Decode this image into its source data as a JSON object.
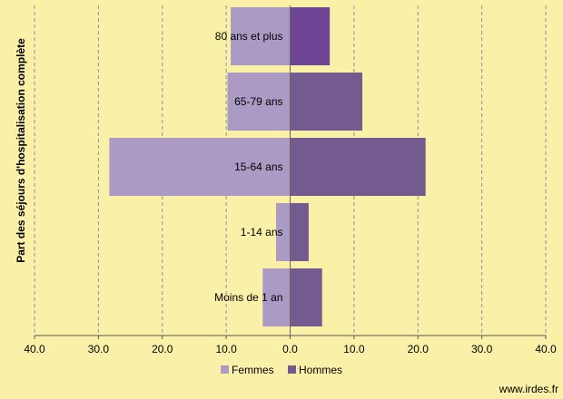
{
  "chart_data": {
    "type": "bar",
    "orientation": "horizontal",
    "layout": "population-pyramid",
    "ylabel": "Part des séjours d'hospitalisation  complète",
    "categories": [
      "80 ans et plus",
      "65-79 ans",
      "15-64 ans",
      "1-14 ans",
      "Moins de 1 an"
    ],
    "series": [
      {
        "name": "Femmes",
        "side": "left",
        "color": "#ab9bc4",
        "values": [
          9.3,
          9.8,
          28.3,
          2.2,
          4.3
        ]
      },
      {
        "name": "Hommes",
        "side": "right",
        "color": "#735b90",
        "values": [
          6.2,
          11.3,
          21.2,
          2.9,
          5.0
        ]
      }
    ],
    "highlight": {
      "category": "80 ans et plus",
      "series": "Hommes",
      "color": "#6d4594"
    },
    "xlim": [
      -40,
      40
    ],
    "xticks": [
      "40.0",
      "30.0",
      "20.0",
      "10.0",
      "0.0",
      "10.0",
      "20.0",
      "30.0",
      "40.0"
    ],
    "grid": "vertical-dashed",
    "legend_position": "bottom"
  },
  "footer": {
    "credit": "www.irdes.fr"
  },
  "colors": {
    "background": "#fbf0a8",
    "grid": "#8393a8",
    "axis": "#555555"
  }
}
